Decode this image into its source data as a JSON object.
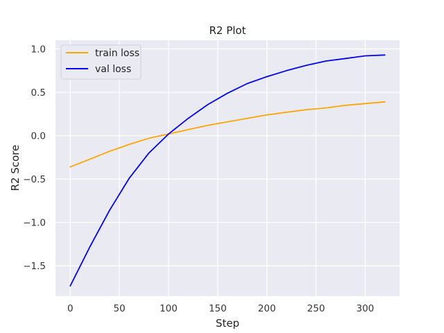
{
  "chart_data": {
    "type": "line",
    "title": "R2 Plot",
    "xlabel": "Step",
    "ylabel": "R2 Score",
    "xlim": [
      -15,
      335
    ],
    "ylim": [
      -1.85,
      1.1
    ],
    "xticks": [
      0,
      50,
      100,
      150,
      200,
      250,
      300
    ],
    "xtick_labels": [
      "0",
      "50",
      "100",
      "150",
      "200",
      "250",
      "300"
    ],
    "yticks": [
      -1.5,
      -1.0,
      -0.5,
      0.0,
      0.5,
      1.0
    ],
    "ytick_labels": [
      "−1.5",
      "−1.0",
      "−0.5",
      "0.0",
      "0.5",
      "1.0"
    ],
    "grid": true,
    "legend_position": "top-left",
    "series": [
      {
        "name": "train loss",
        "color": "#FFA500",
        "x": [
          0,
          20,
          40,
          60,
          80,
          100,
          120,
          140,
          160,
          180,
          200,
          220,
          240,
          260,
          280,
          300,
          320
        ],
        "y": [
          -0.36,
          -0.27,
          -0.18,
          -0.1,
          -0.03,
          0.02,
          0.07,
          0.12,
          0.16,
          0.2,
          0.24,
          0.27,
          0.3,
          0.32,
          0.35,
          0.37,
          0.39
        ]
      },
      {
        "name": "val loss",
        "color": "#0000FF",
        "x": [
          0,
          20,
          40,
          60,
          80,
          100,
          120,
          140,
          160,
          180,
          200,
          220,
          240,
          260,
          280,
          300,
          320
        ],
        "y": [
          -1.73,
          -1.28,
          -0.86,
          -0.49,
          -0.2,
          0.02,
          0.2,
          0.36,
          0.49,
          0.6,
          0.68,
          0.75,
          0.81,
          0.86,
          0.89,
          0.92,
          0.93
        ]
      }
    ]
  }
}
